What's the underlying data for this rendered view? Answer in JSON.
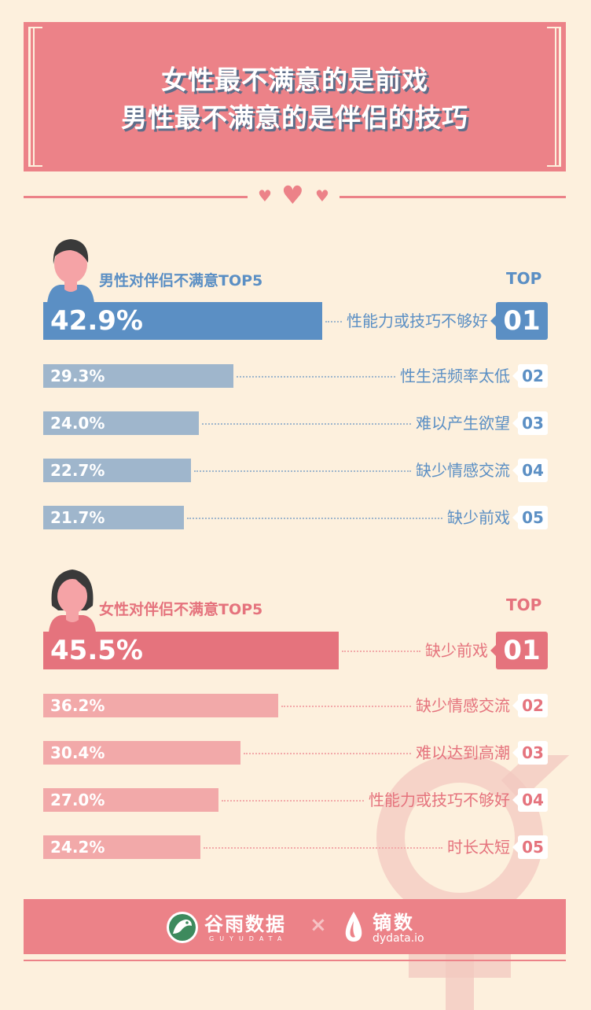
{
  "title": {
    "line1": "女性最不满意的是前戏",
    "line2": "男性最不满意的是伴侣的技巧"
  },
  "colors": {
    "background": "#fdf0dd",
    "banner": "#ec8288",
    "male_top": "#5b8fc4",
    "male_bar": "#9fb6cc",
    "female_top": "#e5737d",
    "female_bar": "#f2a9a9",
    "title_shadow": "#5d6d89"
  },
  "chart_data": [
    {
      "type": "bar",
      "title": "男性对伴侣不满意TOP5",
      "top_label": "TOP",
      "categories": [
        "性能力或技巧不够好",
        "性生活频率太低",
        "难以产生欲望",
        "缺少情感交流",
        "缺少前戏"
      ],
      "ranks": [
        "01",
        "02",
        "03",
        "04",
        "05"
      ],
      "values": [
        42.9,
        29.3,
        24.0,
        22.7,
        21.7
      ],
      "value_labels": [
        "42.9%",
        "29.3%",
        "24.0%",
        "22.7%",
        "21.7%"
      ],
      "unit": "%"
    },
    {
      "type": "bar",
      "title": "女性对伴侣不满意TOP5",
      "top_label": "TOP",
      "categories": [
        "缺少前戏",
        "缺少情感交流",
        "难以达到高潮",
        "性能力或技巧不够好",
        "时长太短"
      ],
      "ranks": [
        "01",
        "02",
        "03",
        "04",
        "05"
      ],
      "values": [
        45.5,
        36.2,
        30.4,
        27.0,
        24.2
      ],
      "value_labels": [
        "45.5%",
        "36.2%",
        "30.4%",
        "27.0%",
        "24.2%"
      ],
      "unit": "%"
    }
  ],
  "footer": {
    "brand1": "谷雨数据",
    "brand1_sub": "GUYUDATA",
    "separator": "×",
    "brand2": "镝数",
    "brand2_sub": "dydata.io"
  },
  "icons": [
    "heart-icon",
    "male-avatar-icon",
    "female-avatar-icon",
    "guyu-logo-icon",
    "dydata-logo-icon",
    "gender-symbol-icon"
  ]
}
